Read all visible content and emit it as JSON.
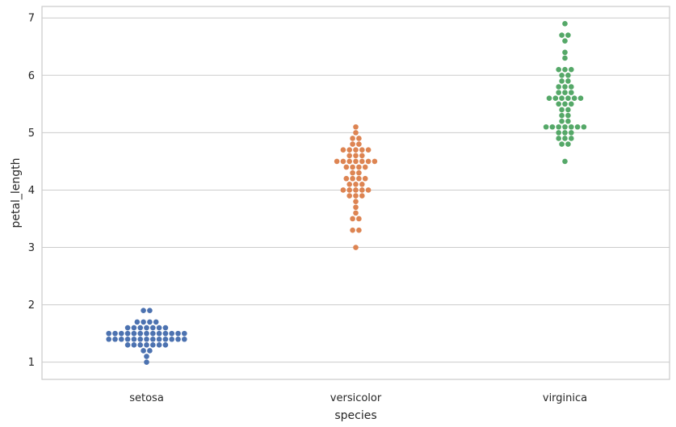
{
  "chart_data": {
    "type": "scatter",
    "subtype": "swarm",
    "title": "",
    "xlabel": "species",
    "ylabel": "petal_length",
    "categories": [
      "setosa",
      "versicolor",
      "virginica"
    ],
    "ylim": [
      0.7,
      7.2
    ],
    "yticks": [
      1,
      2,
      3,
      4,
      5,
      6,
      7
    ],
    "grid": true,
    "colors": [
      "#4c72b0",
      "#dd8452",
      "#55a868"
    ],
    "series": [
      {
        "values": [
          1.4,
          1.4,
          1.3,
          1.5,
          1.4,
          1.7,
          1.4,
          1.5,
          1.4,
          1.5,
          1.5,
          1.6,
          1.4,
          1.1,
          1.2,
          1.5,
          1.3,
          1.4,
          1.7,
          1.5,
          1.7,
          1.5,
          1.0,
          1.7,
          1.9,
          1.6,
          1.6,
          1.5,
          1.4,
          1.6,
          1.6,
          1.5,
          1.5,
          1.4,
          1.5,
          1.2,
          1.3,
          1.4,
          1.3,
          1.5,
          1.3,
          1.3,
          1.3,
          1.6,
          1.9,
          1.4,
          1.6,
          1.4,
          1.5,
          1.4
        ]
      },
      {
        "values": [
          4.7,
          4.5,
          4.9,
          4.0,
          4.6,
          4.5,
          4.7,
          3.3,
          4.6,
          3.9,
          3.5,
          4.2,
          4.0,
          4.7,
          3.6,
          4.4,
          4.5,
          4.1,
          4.5,
          3.9,
          4.8,
          4.0,
          4.9,
          4.7,
          4.3,
          4.4,
          4.8,
          5.0,
          4.5,
          3.5,
          3.8,
          3.7,
          3.9,
          5.1,
          4.5,
          4.5,
          4.7,
          4.4,
          4.1,
          4.0,
          4.4,
          4.6,
          4.0,
          3.3,
          4.2,
          4.2,
          4.2,
          4.3,
          3.0,
          4.1
        ]
      },
      {
        "values": [
          6.0,
          5.1,
          5.9,
          5.6,
          5.8,
          6.6,
          4.5,
          6.3,
          5.8,
          6.1,
          5.1,
          5.3,
          5.5,
          5.0,
          5.1,
          5.3,
          5.5,
          6.7,
          6.9,
          5.0,
          5.7,
          4.9,
          6.7,
          4.9,
          5.7,
          6.0,
          4.8,
          4.9,
          5.6,
          5.8,
          6.1,
          6.4,
          5.6,
          5.1,
          5.6,
          6.1,
          5.6,
          5.5,
          4.8,
          5.4,
          5.6,
          5.1,
          5.1,
          5.9,
          5.7,
          5.2,
          5.0,
          5.2,
          5.4,
          5.1
        ]
      }
    ]
  }
}
